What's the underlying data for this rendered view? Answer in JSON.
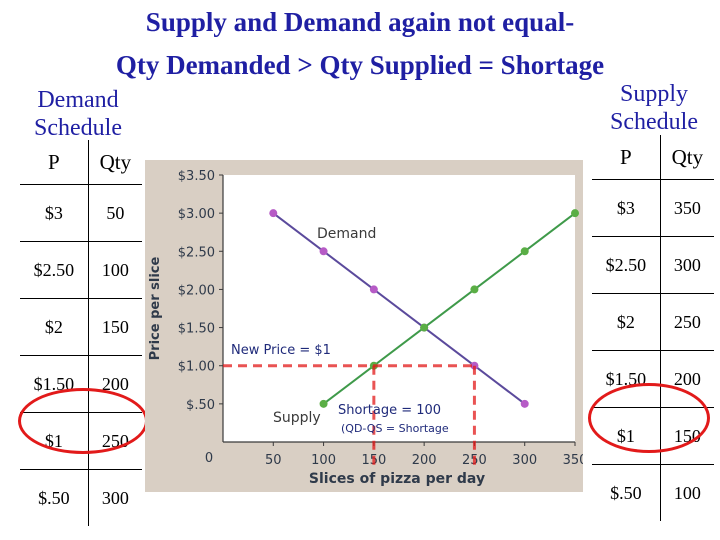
{
  "title": {
    "line1": "Supply and Demand again not equal-",
    "line2": "Qty Demanded > Qty Supplied = Shortage"
  },
  "demand_schedule": {
    "title_line1": "Demand",
    "title_line2": "Schedule",
    "header": [
      "P",
      "Qty"
    ],
    "rows": [
      [
        "$3",
        "50"
      ],
      [
        "$2.50",
        "100"
      ],
      [
        "$2",
        "150"
      ],
      [
        "$1.50",
        "200"
      ],
      [
        "$1",
        "250"
      ],
      [
        "$.50",
        "300"
      ]
    ],
    "highlighted_row": 4
  },
  "supply_schedule": {
    "title_line1": "Supply",
    "title_line2": "Schedule",
    "header": [
      "P",
      "Qty"
    ],
    "rows": [
      [
        "$3",
        "350"
      ],
      [
        "$2.50",
        "300"
      ],
      [
        "$2",
        "250"
      ],
      [
        "$1.50",
        "200"
      ],
      [
        "$1",
        "150"
      ],
      [
        "$.50",
        "100"
      ]
    ],
    "highlighted_row": 4
  },
  "chart_data": {
    "type": "line",
    "xlabel": "Slices of pizza per day",
    "ylabel": "Price per slice",
    "x_ticks": [
      "50",
      "100",
      "150",
      "200",
      "250",
      "300",
      "350"
    ],
    "x_tick_values": [
      50,
      100,
      150,
      200,
      250,
      300,
      350
    ],
    "origin_label": "0",
    "y_ticks": [
      "$3.50",
      "$3.00",
      "$2.50",
      "$2.00",
      "$1.50",
      "$1.00",
      "$.50"
    ],
    "y_tick_values": [
      3.5,
      3.0,
      2.5,
      2.0,
      1.5,
      1.0,
      0.5
    ],
    "xlim": [
      0,
      350
    ],
    "ylim": [
      0,
      3.5
    ],
    "series": [
      {
        "name": "Demand",
        "color": "#5b4a9c",
        "point_color": "#b65bc6",
        "x": [
          50,
          100,
          150,
          200,
          250,
          300
        ],
        "y": [
          3.0,
          2.5,
          2.0,
          1.5,
          1.0,
          0.5
        ]
      },
      {
        "name": "Supply",
        "color": "#3f9a4a",
        "point_color": "#5aae45",
        "x": [
          100,
          150,
          200,
          250,
          300,
          350
        ],
        "y": [
          0.5,
          1.0,
          1.5,
          2.0,
          2.5,
          3.0
        ]
      }
    ],
    "annotations": {
      "new_price": "New Price = $1",
      "new_price_value": 1.0,
      "shortage": "Shortage = 100",
      "shortage_note": "(QD-QS = Shortage",
      "qs_at_price": 150,
      "qd_at_price": 250
    },
    "highlight_color": "#e21a1a"
  }
}
